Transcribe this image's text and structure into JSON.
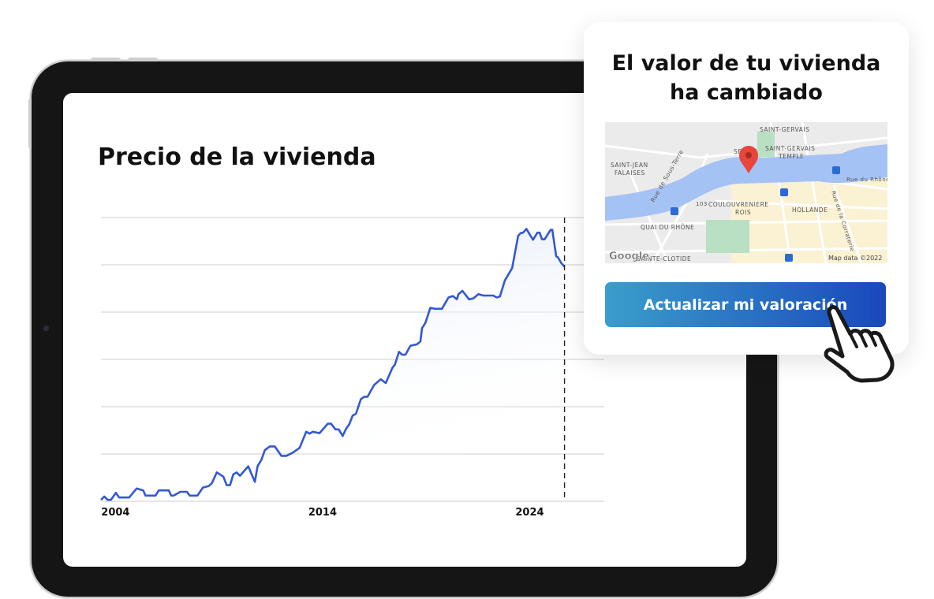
{
  "chart_data": {
    "type": "area",
    "title": "Precio de la vivienda",
    "xlabel": "",
    "ylabel": "",
    "x_ticks": [
      "2004",
      "2014",
      "2024"
    ],
    "xlim": [
      2003.3,
      2027.6
    ],
    "ylim": [
      0,
      6
    ],
    "grid": "horizontal",
    "y_tick_labels_shown": false,
    "marker_line_year": 2025.68,
    "colors": {
      "line": "#3358d4",
      "fill_top": "#e3ebf8",
      "grid": "#e6e6e6",
      "marker": "#222222"
    },
    "x": [
      2003.3,
      2003.46,
      2003.62,
      2003.78,
      2004.02,
      2004.18,
      2004.66,
      2005.02,
      2005.34,
      2005.45,
      2005.93,
      2006.09,
      2006.57,
      2006.69,
      2006.81,
      2007.13,
      2007.45,
      2007.58,
      2007.96,
      2008.22,
      2008.49,
      2008.65,
      2008.89,
      2009.21,
      2009.37,
      2009.53,
      2009.69,
      2009.85,
      2010.01,
      2010.41,
      2010.73,
      2010.86,
      2011.05,
      2011.21,
      2011.45,
      2011.69,
      2012.01,
      2012.25,
      2012.57,
      2012.89,
      2013.21,
      2013.37,
      2013.53,
      2013.85,
      2014.25,
      2014.41,
      2014.62,
      2014.78,
      2014.97,
      2015.13,
      2015.29,
      2015.45,
      2015.61,
      2015.85,
      2016.01,
      2016.17,
      2016.49,
      2016.81,
      2017.05,
      2017.37,
      2017.49,
      2017.69,
      2017.84,
      2018.0,
      2018.24,
      2018.56,
      2018.72,
      2018.8,
      2018.96,
      2019.2,
      2019.44,
      2019.76,
      2020.08,
      2020.29,
      2020.48,
      2020.56,
      2020.75,
      2021.07,
      2021.28,
      2021.52,
      2021.76,
      2022.24,
      2022.4,
      2022.56,
      2022.8,
      2023.15,
      2023.44,
      2023.56,
      2023.68,
      2023.84,
      2024.16,
      2024.37,
      2024.48,
      2024.59,
      2024.72,
      2025.01,
      2025.09,
      2025.28,
      2025.36,
      2025.52,
      2025.68
    ],
    "values": [
      0.03,
      0.1,
      0.03,
      0.03,
      0.18,
      0.08,
      0.08,
      0.27,
      0.23,
      0.12,
      0.12,
      0.23,
      0.23,
      0.12,
      0.12,
      0.2,
      0.2,
      0.12,
      0.12,
      0.29,
      0.32,
      0.38,
      0.61,
      0.52,
      0.34,
      0.34,
      0.57,
      0.61,
      0.54,
      0.74,
      0.41,
      0.74,
      0.88,
      1.08,
      1.16,
      1.16,
      0.96,
      0.96,
      1.03,
      1.13,
      1.47,
      1.43,
      1.47,
      1.44,
      1.64,
      1.64,
      1.52,
      1.52,
      1.38,
      1.53,
      1.63,
      1.81,
      1.85,
      2.16,
      2.21,
      2.21,
      2.46,
      2.58,
      2.5,
      2.82,
      2.89,
      3.16,
      3.1,
      3.1,
      3.29,
      3.32,
      3.38,
      3.66,
      3.77,
      4.09,
      4.07,
      4.07,
      4.31,
      4.34,
      4.27,
      4.38,
      4.45,
      4.27,
      4.29,
      4.38,
      4.35,
      4.35,
      4.31,
      4.33,
      4.67,
      4.93,
      5.61,
      5.67,
      5.68,
      5.76,
      5.53,
      5.68,
      5.68,
      5.54,
      5.54,
      5.74,
      5.74,
      5.18,
      5.16,
      5.04,
      4.96
    ]
  },
  "card": {
    "title_line1": "El valor de tu vivienda",
    "title_line2": "ha cambiado",
    "button_label": "Actualizar mi valoración",
    "button_colors": [
      "#3a9ecb",
      "#1948bd"
    ],
    "map": {
      "labels": [
        "SAINT-GERVAIS",
        "SEUJET",
        "SAINT-GERVAIS",
        "TEMPLE",
        "SAINT-JEAN",
        "FALAISES",
        "Rue de Sous-Terre",
        "Rue du Rhône",
        "103",
        "COULOUVRENIERE",
        "ROIS",
        "HOLLANDE",
        "Rue de la Corraterie",
        "QUAI DU RHÔNE",
        "SAINTE-CLOTIDE"
      ],
      "logo": "Google",
      "attribution": "Map data ©2022",
      "pin_icon": "map-pin-icon",
      "colors": {
        "water": "#a5c2f5",
        "park": "#b9e0c2",
        "land": "#ebebeb",
        "urban": "#fbf1d3",
        "pin": "#e8453c"
      }
    }
  },
  "cursor_icon": "pointing-hand-icon"
}
